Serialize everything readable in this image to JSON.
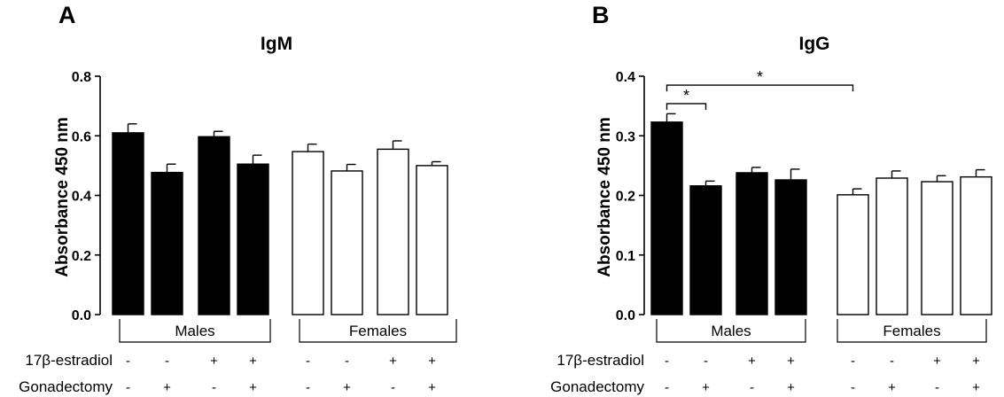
{
  "chart_data": [
    {
      "type": "bar",
      "panel": "A",
      "title": "IgM",
      "ylabel": "Absorbance 450 nm",
      "ylim": [
        0,
        0.8
      ],
      "yticks": [
        "0.0",
        "0.2",
        "0.4",
        "0.6",
        "0.8"
      ],
      "groups": [
        "Males",
        "Females"
      ],
      "values": [
        0.61,
        0.477,
        0.597,
        0.505,
        0.547,
        0.482,
        0.555,
        0.5
      ],
      "errors": [
        0.03,
        0.028,
        0.018,
        0.03,
        0.025,
        0.022,
        0.028,
        0.013
      ],
      "fills": [
        "#000000",
        "#000000",
        "#000000",
        "#000000",
        "#ffffff",
        "#ffffff",
        "#ffffff",
        "#ffffff"
      ],
      "row_labels": [
        "17β-estradiol",
        "Gonadectomy"
      ],
      "estradiol": [
        "-",
        "-",
        "+",
        "+",
        "-",
        "-",
        "+",
        "+"
      ],
      "gonadectomy": [
        "-",
        "+",
        "-",
        "+",
        "-",
        "+",
        "-",
        "+"
      ],
      "significance": []
    },
    {
      "type": "bar",
      "panel": "B",
      "title": "IgG",
      "ylabel": "Absorbance 450 nm",
      "ylim": [
        0,
        0.4
      ],
      "yticks": [
        "0.0",
        "0.1",
        "0.2",
        "0.3",
        "0.4"
      ],
      "groups": [
        "Males",
        "Females"
      ],
      "values": [
        0.323,
        0.216,
        0.238,
        0.226,
        0.201,
        0.229,
        0.223,
        0.231
      ],
      "errors": [
        0.014,
        0.008,
        0.009,
        0.018,
        0.01,
        0.012,
        0.01,
        0.012
      ],
      "fills": [
        "#000000",
        "#000000",
        "#000000",
        "#000000",
        "#ffffff",
        "#ffffff",
        "#ffffff",
        "#ffffff"
      ],
      "row_labels": [
        "17β-estradiol",
        "Gonadectomy"
      ],
      "estradiol": [
        "-",
        "-",
        "+",
        "+",
        "-",
        "-",
        "+",
        "+"
      ],
      "gonadectomy": [
        "-",
        "+",
        "-",
        "+",
        "-",
        "+",
        "-",
        "+"
      ],
      "significance": [
        {
          "from": 0,
          "to": 1,
          "y": 0.354,
          "label": "*"
        },
        {
          "from": 0,
          "to": 4,
          "y": 0.385,
          "label": "*"
        }
      ]
    }
  ]
}
